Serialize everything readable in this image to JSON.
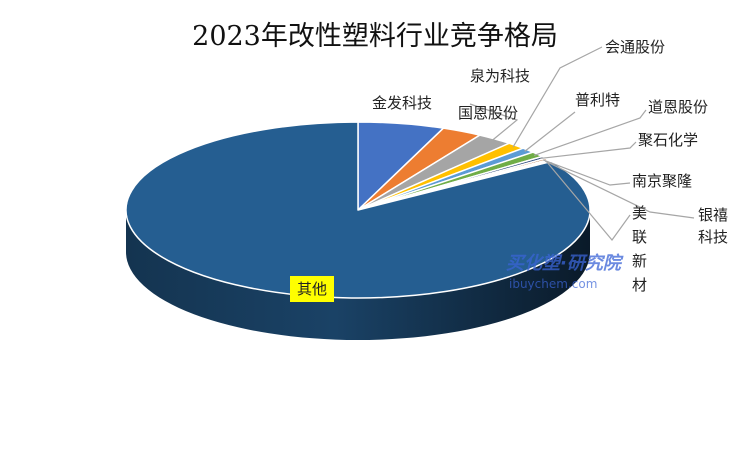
{
  "chart_data": {
    "type": "pie",
    "title": "2023年改性塑料行业竞争格局",
    "style": "3d",
    "slices": [
      {
        "label": "金发科技",
        "value": 6.0,
        "color": "#4472c4"
      },
      {
        "label": "国恩股份",
        "value": 2.8,
        "color": "#ed7d31"
      },
      {
        "label": "泉为科技",
        "value": 2.5,
        "color": "#a5a5a5"
      },
      {
        "label": "会通股份",
        "value": 1.3,
        "color": "#ffc000"
      },
      {
        "label": "普利特",
        "value": 1.0,
        "color": "#5b9bd5"
      },
      {
        "label": "道恩股份",
        "value": 1.0,
        "color": "#70ad47"
      },
      {
        "label": "聚石化学",
        "value": 0.4,
        "color": "#264478"
      },
      {
        "label": "南京聚隆",
        "value": 0.3,
        "color": "#9e480e"
      },
      {
        "label": "银禧科技",
        "value": 0.2,
        "color": "#636363"
      },
      {
        "label": "美联新材",
        "value": 0.2,
        "color": "#997300"
      },
      {
        "label": "其他",
        "value": 84.3,
        "color": "#255e91"
      }
    ],
    "legend": "none"
  },
  "watermark": {
    "line1": "买化塑·研究院",
    "line2": "ibuychem.com"
  }
}
